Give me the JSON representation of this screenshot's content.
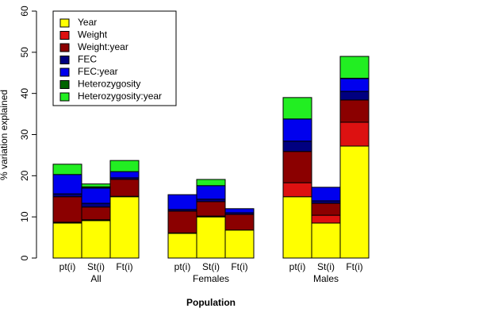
{
  "chart_data": {
    "type": "bar",
    "stacked": true,
    "y_label": "% variation explained",
    "x_label": "Population",
    "categories": [
      "pt(i)",
      "St(i)",
      "Ft(i)",
      "pt(i)",
      "St(i)",
      "Ft(i)",
      "pt(i)",
      "St(i)",
      "Ft(i)"
    ],
    "groups": [
      "All",
      "Females",
      "Males"
    ],
    "series": [
      {
        "name": "Year",
        "color": "#ffff00",
        "values": [
          8.5,
          9.1,
          14.9,
          6.0,
          10.0,
          6.8,
          14.9,
          8.5,
          27.2
        ]
      },
      {
        "name": "Weight",
        "color": "#dd1111",
        "values": [
          0.2,
          0.2,
          0.1,
          0.1,
          0.2,
          0,
          3.4,
          1.9,
          5.8
        ]
      },
      {
        "name": "Weight:year",
        "color": "#8b0000",
        "values": [
          6.2,
          3.1,
          4.1,
          5.3,
          3.5,
          3.8,
          7.6,
          2.9,
          5.4
        ]
      },
      {
        "name": "FEC",
        "color": "#000080",
        "values": [
          0.7,
          0.9,
          0.4,
          0.4,
          0.6,
          0.4,
          2.5,
          0.6,
          2.1
        ]
      },
      {
        "name": "FEC:year",
        "color": "#0000ee",
        "values": [
          4.7,
          3.7,
          1.5,
          3.6,
          3.3,
          1.0,
          5.4,
          3.3,
          3.1
        ]
      },
      {
        "name": "Heterozygosity",
        "color": "#006400",
        "values": [
          0,
          0.3,
          0,
          0,
          0,
          0,
          0,
          0,
          0.1
        ]
      },
      {
        "name": "Heterozygosity:year",
        "color": "#22ee22",
        "values": [
          2.5,
          0.7,
          2.7,
          0,
          1.5,
          0,
          5.2,
          0,
          5.3
        ]
      }
    ],
    "ylim": [
      0,
      60
    ],
    "yticks": [
      0,
      10,
      20,
      30,
      40,
      50,
      60
    ],
    "legend": "top-left"
  }
}
